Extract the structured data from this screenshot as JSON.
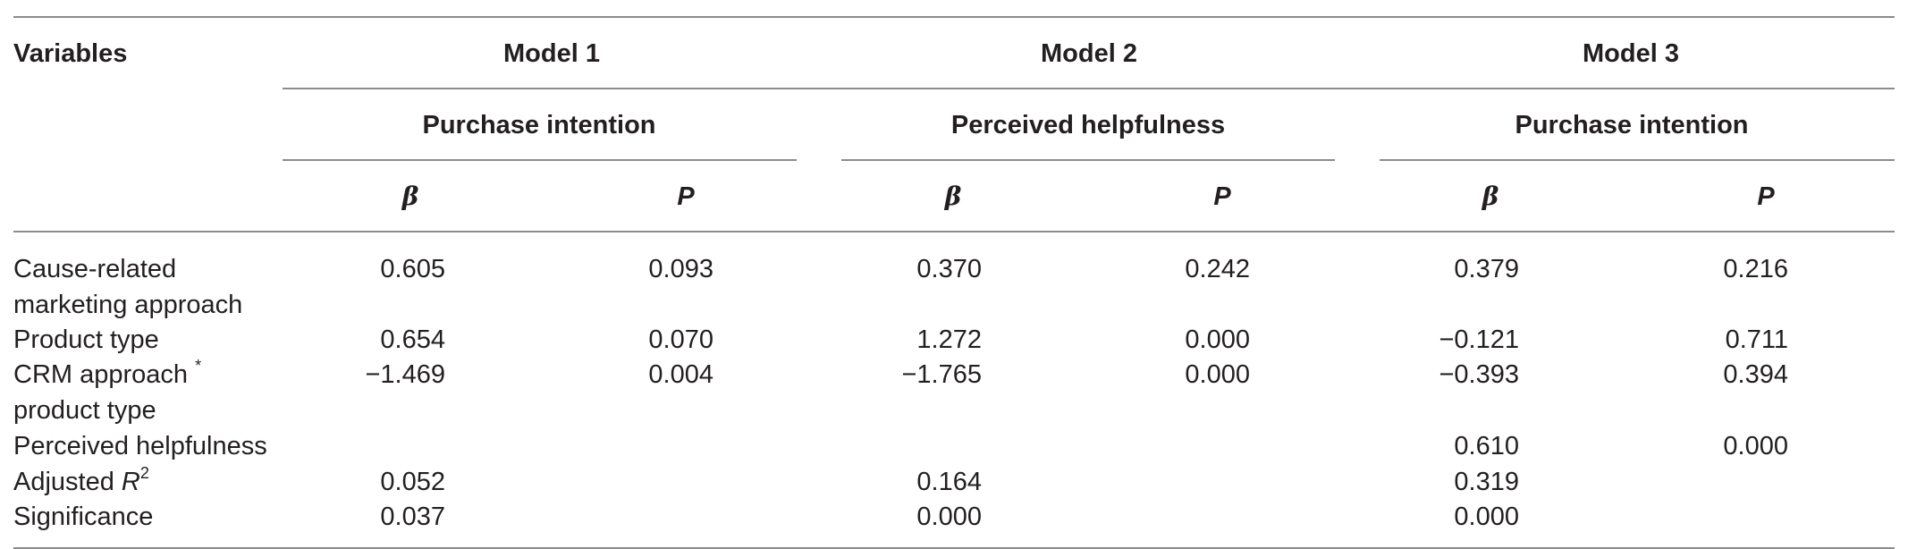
{
  "header": {
    "variables": "Variables",
    "models": [
      {
        "name": "Model 1",
        "dependent": "Purchase intention"
      },
      {
        "name": "Model 2",
        "dependent": "Perceived helpfulness"
      },
      {
        "name": "Model 3",
        "dependent": "Purchase intention"
      }
    ],
    "beta": "β",
    "p": "P"
  },
  "rows": [
    {
      "label_lines": [
        "Cause-related",
        "marketing approach"
      ],
      "m1b": "0.605",
      "m1p": "0.093",
      "m2b": "0.370",
      "m2p": "0.242",
      "m3b": "0.379",
      "m3p": "0.216"
    },
    {
      "label_lines": [
        "Product type"
      ],
      "m1b": "0.654",
      "m1p": "0.070",
      "m2b": "1.272",
      "m2p": "0.000",
      "m3b": "−0.121",
      "m3p": "0.711"
    },
    {
      "label_lines": [
        "CRM approach",
        "product type"
      ],
      "label_sup": "*",
      "m1b": "−1.469",
      "m1p": "0.004",
      "m2b": "−1.765",
      "m2p": "0.000",
      "m3b": "−0.393",
      "m3p": "0.394"
    },
    {
      "label_lines": [
        "Perceived helpfulness"
      ],
      "m1b": "",
      "m1p": "",
      "m2b": "",
      "m2p": "",
      "m3b": "0.610",
      "m3p": "0.000"
    },
    {
      "label_lines": [
        "Adjusted "
      ],
      "label_ital": "R",
      "label_sup": "2",
      "m1b": "0.052",
      "m1p": "",
      "m2b": "0.164",
      "m2p": "",
      "m3b": "0.319",
      "m3p": ""
    },
    {
      "label_lines": [
        "Significance"
      ],
      "m1b": "0.037",
      "m1p": "",
      "m2b": "0.000",
      "m2p": "",
      "m3b": "0.000",
      "m3p": ""
    }
  ]
}
